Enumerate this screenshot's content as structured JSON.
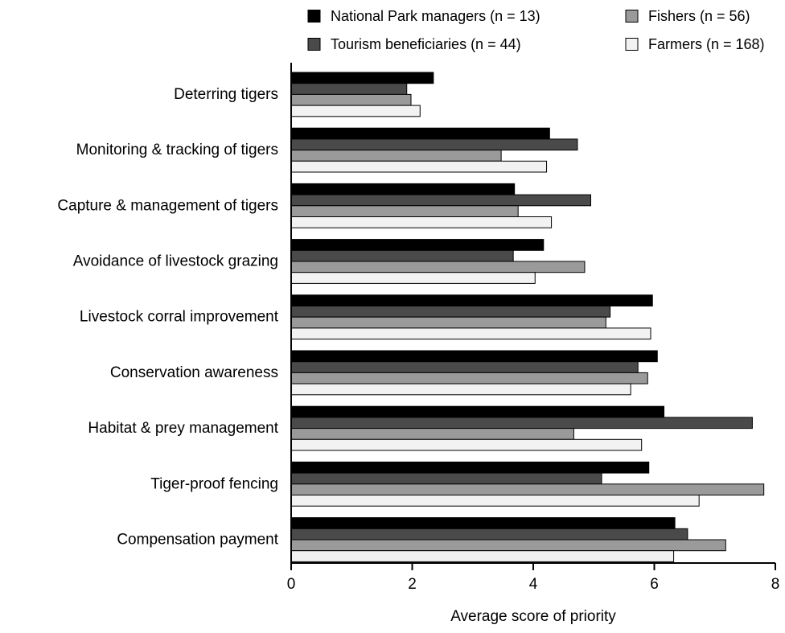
{
  "chart_data": {
    "type": "bar",
    "orientation": "horizontal",
    "title": "",
    "xlabel": "Average score of priority",
    "ylabel": "",
    "xlim": [
      0,
      8
    ],
    "xticks": [
      0,
      2,
      4,
      6,
      8
    ],
    "xtick_labels": [
      "0",
      "2",
      "4",
      "6",
      "8"
    ],
    "grid": false,
    "legend_position": "top-right",
    "categories": [
      "Deterring tigers",
      "Monitoring & tracking of tigers",
      "Capture & management of tigers",
      "Avoidance of livestock grazing",
      "Livestock corral improvement",
      "Conservation awareness",
      "Habitat & prey management",
      "Tiger-proof fencing",
      "Compensation payment"
    ],
    "series": [
      {
        "name": "National Park managers (n = 13)",
        "color": "#000000",
        "values": [
          2.35,
          4.27,
          3.69,
          4.17,
          5.97,
          6.05,
          6.16,
          5.91,
          6.34
        ]
      },
      {
        "name": "Tourism beneficiaries (n = 44)",
        "color": "#4a4a4a",
        "values": [
          1.91,
          4.73,
          4.95,
          3.67,
          5.27,
          5.73,
          7.62,
          5.13,
          6.55
        ]
      },
      {
        "name": "Fishers (n = 56)",
        "color": "#9a9a9a",
        "values": [
          1.98,
          3.47,
          3.75,
          4.85,
          5.2,
          5.89,
          4.67,
          7.81,
          7.18
        ]
      },
      {
        "name": "Farmers (n = 168)",
        "color": "#f2f2f2",
        "values": [
          2.13,
          4.22,
          4.3,
          4.03,
          5.94,
          5.61,
          5.79,
          6.74,
          6.32
        ]
      }
    ]
  }
}
